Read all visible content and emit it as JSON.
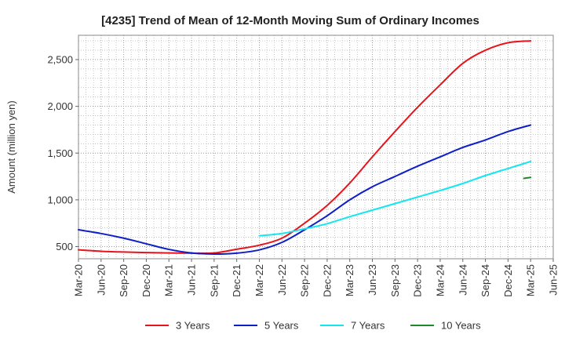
{
  "chart_data": {
    "type": "line",
    "title": "[4235]  Trend of Mean of 12-Month Moving Sum of Ordinary Incomes",
    "xlabel": "",
    "ylabel": "Amount (million yen)",
    "ylim": [
      370,
      2760
    ],
    "yticks": [
      500,
      1000,
      1500,
      2000,
      2500
    ],
    "ytick_labels": [
      "500",
      "1,000",
      "1,500",
      "2,000",
      "2,500"
    ],
    "x_categories": [
      "Mar-20",
      "Jun-20",
      "Sep-20",
      "Dec-20",
      "Mar-21",
      "Jun-21",
      "Sep-21",
      "Dec-21",
      "Mar-22",
      "Jun-22",
      "Sep-22",
      "Dec-22",
      "Mar-23",
      "Jun-23",
      "Sep-23",
      "Dec-23",
      "Mar-24",
      "Jun-24",
      "Sep-24",
      "Dec-24",
      "Mar-25",
      "Jun-25"
    ],
    "grid": true,
    "legend_position": "bottom",
    "series": [
      {
        "name": "3 Years",
        "color": "#e8141b",
        "start_index": 0,
        "values": [
          465,
          450,
          442,
          436,
          432,
          430,
          432,
          472,
          515,
          590,
          750,
          940,
          1180,
          1460,
          1730,
          1990,
          2230,
          2460,
          2600,
          2680,
          2700
        ]
      },
      {
        "name": "5 Years",
        "color": "#0f1fc8",
        "start_index": 0,
        "values": [
          680,
          640,
          590,
          530,
          470,
          432,
          420,
          430,
          465,
          545,
          680,
          830,
          1000,
          1140,
          1250,
          1360,
          1460,
          1560,
          1640,
          1730,
          1800
        ]
      },
      {
        "name": "7 Years",
        "color": "#14e6f0",
        "start_index": 8,
        "values": [
          615,
          640,
          690,
          745,
          820,
          890,
          960,
          1030,
          1100,
          1175,
          1260,
          1335,
          1410
        ]
      },
      {
        "name": "10 Years",
        "color": "#1f8a2a",
        "start_index": 19.7,
        "values": [
          1230,
          1240
        ]
      }
    ]
  }
}
